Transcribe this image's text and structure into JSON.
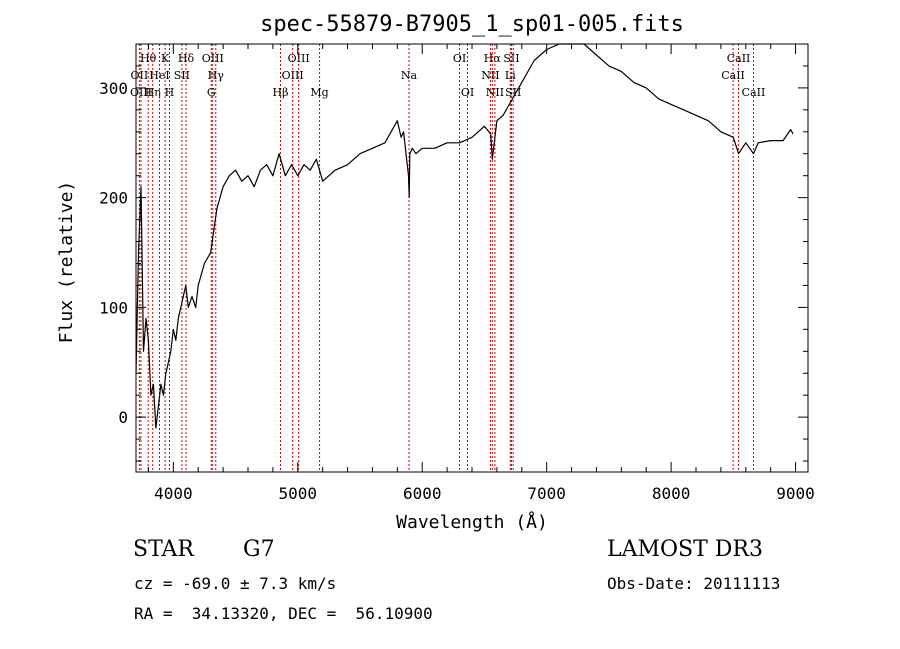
{
  "chart_data": {
    "type": "line",
    "title": "spec-55879-B7905_1_sp01-005.fits",
    "xlabel": "Wavelength (Å)",
    "ylabel": "Flux (relative)",
    "xlim": [
      3700,
      9100
    ],
    "ylim": [
      -50,
      340
    ],
    "xticks": [
      4000,
      5000,
      6000,
      7000,
      8000,
      9000
    ],
    "xtick_labels": [
      "4000",
      "5000",
      "6000",
      "7000",
      "8000",
      "9000"
    ],
    "yticks": [
      0,
      100,
      200,
      300
    ],
    "ytick_labels": [
      "0",
      "100",
      "200",
      "300"
    ],
    "grid": false,
    "series": [
      {
        "name": "flux",
        "x": [
          3700,
          3720,
          3740,
          3760,
          3780,
          3800,
          3820,
          3840,
          3860,
          3880,
          3900,
          3920,
          3940,
          3960,
          3980,
          4000,
          4020,
          4040,
          4060,
          4080,
          4100,
          4120,
          4150,
          4180,
          4200,
          4250,
          4300,
          4350,
          4400,
          4450,
          4500,
          4550,
          4600,
          4650,
          4700,
          4750,
          4800,
          4850,
          4900,
          4950,
          5000,
          5050,
          5100,
          5150,
          5200,
          5300,
          5400,
          5500,
          5600,
          5700,
          5750,
          5800,
          5830,
          5850,
          5870,
          5890,
          5895,
          5900,
          5920,
          5950,
          6000,
          6100,
          6200,
          6300,
          6400,
          6500,
          6550,
          6563,
          6600,
          6650,
          6700,
          6800,
          6900,
          7000,
          7100,
          7200,
          7300,
          7400,
          7500,
          7600,
          7700,
          7800,
          7900,
          8000,
          8100,
          8200,
          8300,
          8400,
          8500,
          8542,
          8600,
          8662,
          8700,
          8800,
          8900,
          8960,
          8980
        ],
        "values": [
          40,
          150,
          210,
          60,
          90,
          70,
          20,
          30,
          -10,
          10,
          30,
          20,
          40,
          50,
          60,
          80,
          70,
          90,
          100,
          110,
          120,
          100,
          110,
          100,
          120,
          140,
          150,
          190,
          210,
          220,
          225,
          215,
          220,
          210,
          225,
          230,
          220,
          240,
          220,
          230,
          220,
          230,
          225,
          235,
          215,
          225,
          230,
          240,
          245,
          250,
          260,
          270,
          255,
          260,
          240,
          220,
          200,
          240,
          245,
          240,
          245,
          245,
          250,
          250,
          255,
          265,
          258,
          235,
          270,
          275,
          285,
          305,
          325,
          335,
          345,
          345,
          340,
          330,
          320,
          315,
          305,
          300,
          290,
          285,
          280,
          275,
          270,
          260,
          255,
          240,
          250,
          240,
          250,
          252,
          252,
          262,
          258
        ]
      }
    ],
    "annotations": [
      "Hθ",
      "OII",
      "OIII",
      "Hη",
      "K",
      "HeI",
      "H",
      "SII",
      "Hδ",
      "OIII",
      "Hγ",
      "G",
      "Hβ",
      "OIII",
      "OIII",
      "Mg",
      "Na",
      "OI",
      "OI",
      "Hα",
      "NII",
      "NII",
      "SII",
      "Li",
      "SII",
      "CaII",
      "CaII",
      "CaII"
    ],
    "line_markers": [
      {
        "name": "Hθ",
        "x": 3798,
        "row": 1
      },
      {
        "name": "OII",
        "x": 3727,
        "row": 2
      },
      {
        "name": "OIII",
        "x": 3740,
        "row": 3
      },
      {
        "name": "Hη",
        "x": 3835,
        "row": 3
      },
      {
        "name": "K",
        "x": 3934,
        "row": 1
      },
      {
        "name": "HeI",
        "x": 3889,
        "row": 2
      },
      {
        "name": "H",
        "x": 3969,
        "row": 3
      },
      {
        "name": "SII",
        "x": 4069,
        "row": 2
      },
      {
        "name": "Hδ",
        "x": 4102,
        "row": 1
      },
      {
        "name": "OIII",
        "x": 4317,
        "row": 1
      },
      {
        "name": "Hγ",
        "x": 4341,
        "row": 2
      },
      {
        "name": "G",
        "x": 4305,
        "row": 3
      },
      {
        "name": "Hβ",
        "x": 4861,
        "row": 3
      },
      {
        "name": "OIII",
        "x": 4959,
        "row": 2
      },
      {
        "name": "OIII",
        "x": 5007,
        "row": 1
      },
      {
        "name": "Mg",
        "x": 5175,
        "row": 3
      },
      {
        "name": "Na",
        "x": 5894,
        "row": 2
      },
      {
        "name": "OI",
        "x": 6300,
        "row": 1
      },
      {
        "name": "OI",
        "x": 6364,
        "row": 3
      },
      {
        "name": "Hα",
        "x": 6563,
        "row": 1
      },
      {
        "name": "NII",
        "x": 6548,
        "row": 2
      },
      {
        "name": "NII",
        "x": 6584,
        "row": 3
      },
      {
        "name": "SII",
        "x": 6717,
        "row": 1
      },
      {
        "name": "Li",
        "x": 6708,
        "row": 2
      },
      {
        "name": "SII",
        "x": 6731,
        "row": 3
      },
      {
        "name": "CaII",
        "x": 8542,
        "row": 1
      },
      {
        "name": "CaII",
        "x": 8498,
        "row": 2
      },
      {
        "name": "CaII",
        "x": 8662,
        "row": 3
      }
    ]
  },
  "info": {
    "object_class": "STAR",
    "subclass": "G7",
    "survey": "LAMOST DR3",
    "cz_line": "cz = -69.0 ± 7.3 km/s",
    "obs_date_line": "Obs-Date: 20111113",
    "coords_line": "RA =  34.13320, DEC =  56.10900"
  }
}
